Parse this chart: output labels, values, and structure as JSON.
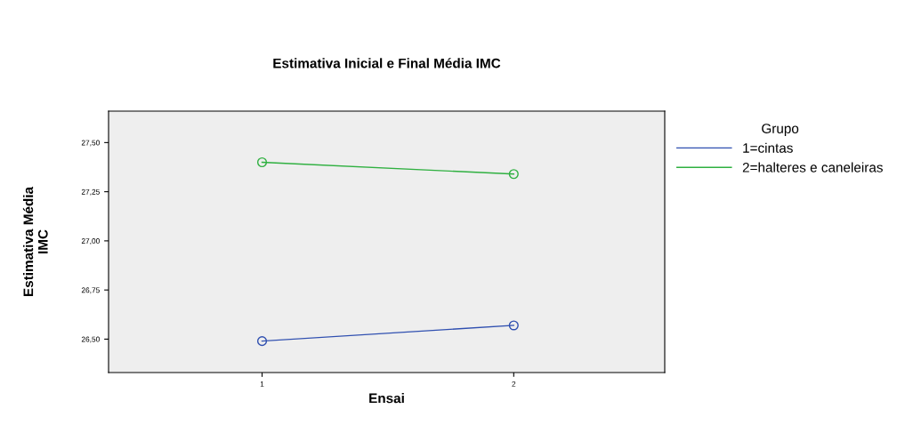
{
  "chart_data": {
    "type": "line",
    "title": "Estimativa Inicial e Final Média IMC",
    "xlabel": "Ensai",
    "ylabel": "Estimativa Média\nIMC",
    "legend_title": "Grupo",
    "categories": [
      "1",
      "2"
    ],
    "series": [
      {
        "name": "1=cintas",
        "color": "#2f4fb0",
        "values": [
          26.49,
          26.57
        ]
      },
      {
        "name": "2=halteres e caneleiras",
        "color": "#2fb040",
        "values": [
          27.4,
          27.34
        ]
      }
    ],
    "ylim": [
      26.33,
      27.66
    ],
    "yticks": [
      {
        "value": 26.5,
        "label": "26,50"
      },
      {
        "value": 26.75,
        "label": "26,75"
      },
      {
        "value": 27.0,
        "label": "27,00"
      },
      {
        "value": 27.25,
        "label": "27,25"
      },
      {
        "value": 27.5,
        "label": "27,50"
      }
    ],
    "marker": "circle",
    "line_style": "solid",
    "grid": false,
    "legend": "top right"
  }
}
